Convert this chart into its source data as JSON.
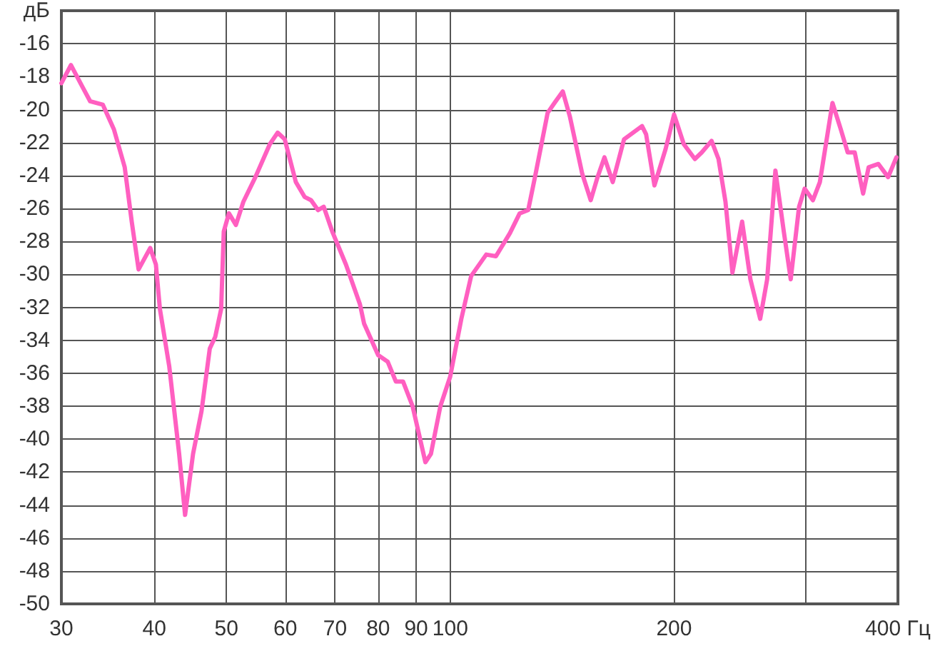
{
  "chart_data": {
    "type": "line",
    "log": "x",
    "grid": true,
    "marker": "none",
    "line_style": "solid",
    "x": [
      30,
      30.9,
      32.0,
      32.8,
      34.1,
      35.3,
      36.5,
      37.3,
      38.1,
      39.5,
      40.2,
      40.7,
      41.9,
      43.2,
      44.0,
      45.1,
      46.3,
      47.5,
      48.3,
      49.2,
      49.6,
      50.4,
      51.5,
      52.7,
      54.7,
      57.2,
      58.6,
      59.9,
      62.0,
      63.7,
      65.0,
      66.4,
      67.6,
      69.4,
      72.4,
      75.6,
      76.6,
      80.0,
      82.4,
      84.5,
      86.4,
      89.0,
      92.6,
      94.2,
      97.0,
      100,
      103.5,
      106.7,
      111.8,
      115.2,
      120.3,
      124.0,
      127.3,
      130.0,
      135.2,
      138.1,
      141.7,
      144.8,
      150.5,
      154.5,
      157.8,
      161.2,
      165.4,
      171.3,
      181.1,
      183.4,
      188.2,
      194.8,
      200,
      206.1,
      213.3,
      217.9,
      224.6,
      229.5,
      234.5,
      239.6,
      246.9,
      253.3,
      261.1,
      266.8,
      273.7,
      280.9,
      287.0,
      294.5,
      299.6,
      307.4,
      314.1,
      326.6,
      335.1,
      342.4,
      349.9,
      359.1,
      365.3,
      376.5,
      388.0,
      398.1
    ],
    "series": [
      {
        "color": "#ff5fc0",
        "values": [
          -18.4,
          -17.3,
          -18.6,
          -19.5,
          -19.7,
          -21.2,
          -23.5,
          -26.8,
          -29.7,
          -28.4,
          -29.4,
          -32.1,
          -35.6,
          -40.9,
          -44.6,
          -40.9,
          -38.3,
          -34.5,
          -33.8,
          -32.1,
          -27.4,
          -26.3,
          -27.0,
          -25.6,
          -24.1,
          -22.1,
          -21.4,
          -21.8,
          -24.4,
          -25.3,
          -25.5,
          -26.1,
          -25.9,
          -27.4,
          -29.4,
          -31.8,
          -33.0,
          -34.9,
          -35.3,
          -36.5,
          -36.5,
          -38.0,
          -41.4,
          -40.9,
          -38.0,
          -36.2,
          -32.7,
          -30.1,
          -28.8,
          -28.9,
          -27.5,
          -26.3,
          -26.1,
          -24.1,
          -20.2,
          -19.6,
          -18.9,
          -20.4,
          -23.9,
          -25.5,
          -24.1,
          -22.9,
          -24.4,
          -21.8,
          -21.0,
          -21.5,
          -24.6,
          -22.4,
          -20.3,
          -22.1,
          -23.0,
          -22.6,
          -21.9,
          -23.0,
          -25.6,
          -29.9,
          -26.8,
          -30.3,
          -32.7,
          -30.3,
          -23.7,
          -27.4,
          -30.3,
          -25.9,
          -24.8,
          -25.5,
          -24.4,
          -19.6,
          -21.2,
          -22.6,
          -22.6,
          -25.1,
          -23.5,
          -23.3,
          -24.1,
          -22.9
        ]
      }
    ],
    "xlim": [
      30,
      400
    ],
    "xticks": [
      30,
      40,
      50,
      60,
      70,
      80,
      90,
      100,
      200,
      {
        "value": 300,
        "label": null
      },
      {
        "value": 400,
        "label": "400 Гц"
      }
    ],
    "ylim": [
      -50,
      -14
    ],
    "yticks": [
      -50,
      -48,
      -46,
      -44,
      -42,
      -40,
      -38,
      -36,
      -34,
      -32,
      -30,
      -28,
      -26,
      -24,
      -22,
      -20,
      -18,
      -16,
      {
        "value": -14,
        "label": "дБ"
      }
    ]
  }
}
